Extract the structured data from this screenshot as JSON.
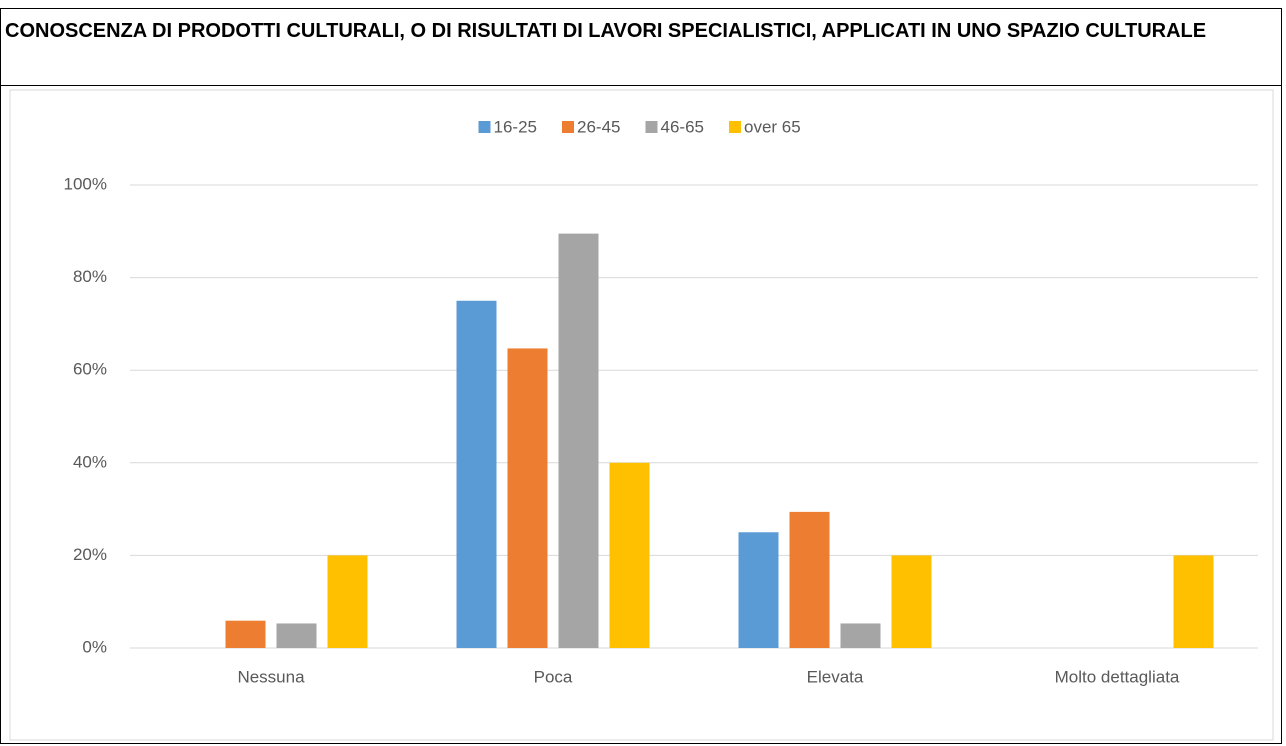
{
  "chart_data": {
    "type": "bar",
    "title": "CONOSCENZA DI PRODOTTI CULTURALI, O DI RISULTATI DI LAVORI SPECIALISTICI, APPLICATI IN UNO SPAZIO CULTURALE",
    "categories": [
      "Nessuna",
      "Poca",
      "Elevata",
      "Molto dettagliata"
    ],
    "series": [
      {
        "name": "16-25",
        "color": "#5b9bd5",
        "values": [
          0,
          75,
          25,
          0
        ]
      },
      {
        "name": "26-45",
        "color": "#ed7d31",
        "values": [
          5.9,
          64.7,
          29.4,
          0
        ]
      },
      {
        "name": "46-65",
        "color": "#a5a5a5",
        "values": [
          5.3,
          89.5,
          5.3,
          0
        ]
      },
      {
        "name": "over 65",
        "color": "#ffc000",
        "values": [
          20,
          40,
          20,
          20
        ]
      }
    ],
    "ylim": [
      0,
      100
    ],
    "yticks": [
      {
        "value": 0,
        "label": "0%"
      },
      {
        "value": 20,
        "label": "20%"
      },
      {
        "value": 40,
        "label": "40%"
      },
      {
        "value": 60,
        "label": "60%"
      },
      {
        "value": 80,
        "label": "80%"
      },
      {
        "value": 100,
        "label": "100%"
      }
    ],
    "grid": true,
    "legend": "top"
  }
}
